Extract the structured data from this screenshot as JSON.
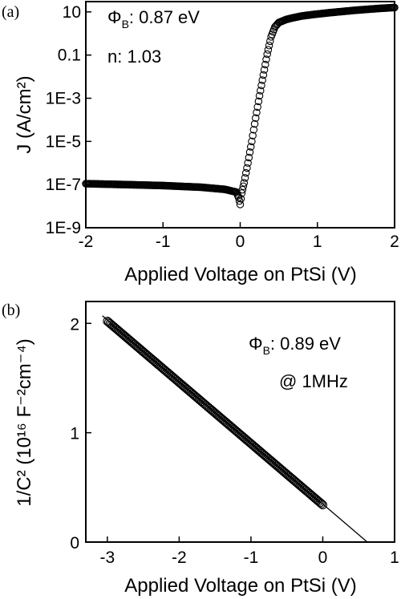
{
  "chart_data": [
    {
      "type": "scatter",
      "panel_label": "(a)",
      "xlabel": "Applied Voltage on PtSi (V)",
      "ylabel": "J (A/cm²)",
      "xlim": [
        -2,
        2
      ],
      "ylim": [
        1e-09,
        30
      ],
      "yscale": "log",
      "xticks": [
        -2,
        -1,
        0,
        1,
        2
      ],
      "xtick_labels": [
        "-2",
        "-1",
        "0",
        "1",
        "2"
      ],
      "yticks": [
        1e-09,
        1e-07,
        1e-05,
        0.001,
        0.1,
        10
      ],
      "ytick_labels": [
        "1E-9",
        "1E-7",
        "1E-5",
        "1E-3",
        "0.1",
        "10"
      ],
      "marker": "open-circle",
      "annotations": {
        "phi_sym": "Φ",
        "phi_sub": "B",
        "phi_value": ": 0.87 eV",
        "ideality": "n: 1.03"
      },
      "series": [
        {
          "x": [
            -2.0,
            -1.5,
            -1.0,
            -0.5,
            -0.2,
            -0.05,
            -0.02,
            0.0,
            0.02,
            0.05,
            0.1,
            0.15,
            0.2,
            0.25,
            0.3,
            0.35,
            0.4,
            0.45,
            0.5,
            0.6,
            0.7,
            0.8,
            1.0,
            1.2,
            1.5,
            1.8,
            2.0
          ],
          "y": [
            1.1e-07,
            1e-07,
            9e-08,
            7.5e-08,
            6e-08,
            4.5e-08,
            2.5e-08,
            1.2e-08,
            4e-08,
            1.2e-07,
            1e-06,
            1e-05,
            0.00012,
            0.0013,
            0.012,
            0.11,
            0.7,
            2.0,
            3.2,
            4.5,
            5.5,
            6.5,
            8.0,
            9.5,
            12.0,
            14.5,
            16.0
          ]
        }
      ]
    },
    {
      "type": "scatter",
      "panel_label": "(b)",
      "xlabel": "Applied Voltage on PtSi (V)",
      "ylabel": "1/C² (10¹⁶ F⁻²cm⁻⁴)",
      "xlim": [
        -3.3,
        1
      ],
      "ylim": [
        0,
        2.2
      ],
      "xticks": [
        -3,
        -2,
        -1,
        0,
        1
      ],
      "xtick_labels": [
        "-3",
        "-2",
        "-1",
        "0",
        "1"
      ],
      "yticks": [
        0,
        1,
        2
      ],
      "ytick_labels": [
        "0",
        "1",
        "2"
      ],
      "marker": "open-circle",
      "annotations": {
        "phi_sym": "Φ",
        "phi_sub": "B",
        "phi_value": ": 0.89 eV",
        "freq": "@ 1MHz"
      },
      "fit_line": {
        "x": [
          -3.07,
          0.62
        ],
        "y": [
          2.07,
          0.0
        ]
      },
      "series": [
        {
          "x_range": [
            -3.0,
            0.0
          ],
          "y_start": 2.02,
          "y_end": 0.34
        }
      ]
    }
  ]
}
